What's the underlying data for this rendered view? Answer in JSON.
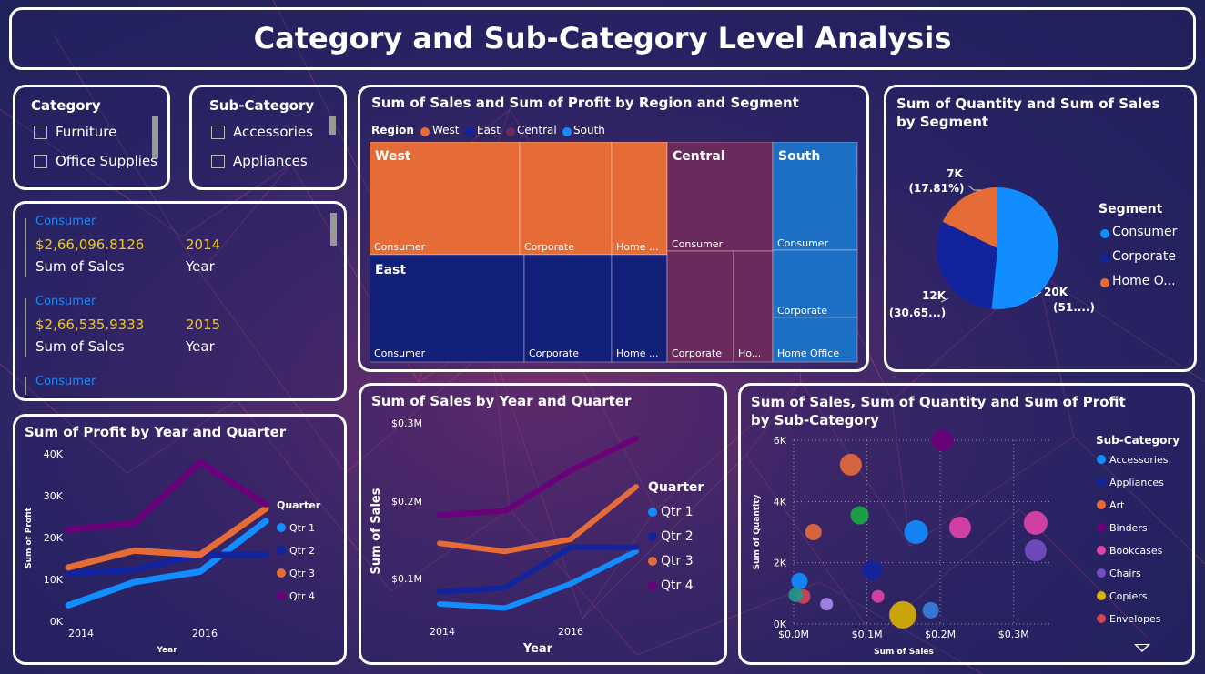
{
  "title": "Category and Sub-Category Level Analysis",
  "category_slicer": {
    "title": "Category",
    "items": [
      "Furniture",
      "Office Supplies"
    ]
  },
  "subcategory_slicer": {
    "title": "Sub-Category",
    "items": [
      "Accessories",
      "Appliances"
    ]
  },
  "sales_list": {
    "entries": [
      {
        "segment": "Consumer",
        "sales": "$2,66,096.8126",
        "sales_label": "Sum of Sales",
        "year": "2014",
        "year_label": "Year"
      },
      {
        "segment": "Consumer",
        "sales": "$2,66,535.9333",
        "sales_label": "Sum of Sales",
        "year": "2015",
        "year_label": "Year"
      },
      {
        "segment": "Consumer"
      }
    ]
  },
  "treemap": {
    "title": "Sum of Sales and Sum of Profit by Region and Segment",
    "legend_title": "Region",
    "legend": [
      {
        "name": "West",
        "color": "#e66c37"
      },
      {
        "name": "East",
        "color": "#12239e"
      },
      {
        "name": "Central",
        "color": "#6b007b"
      },
      {
        "name": "South",
        "color": "#118dff"
      }
    ],
    "regions": [
      "West",
      "East",
      "Central",
      "South"
    ],
    "cells": [
      "Consumer",
      "Corporate",
      "Home ...",
      "Consumer",
      "Corporate",
      "Home ...",
      "Consumer",
      "Corporate",
      "Ho...",
      "Consumer",
      "Corporate",
      "Home Office"
    ]
  },
  "pie": {
    "title": "Sum of Quantity and Sum of Sales by Segment",
    "legend_title": "Segment",
    "legend": [
      "Consumer",
      "Corporate",
      "Home O..."
    ],
    "labels": {
      "consumer": [
        "20K",
        "(51....)"
      ],
      "corporate": [
        "12K",
        "(30.65...)"
      ],
      "home": [
        "7K",
        "(17.81%)"
      ]
    },
    "colors": [
      "#118dff",
      "#12239e",
      "#e66c37"
    ],
    "chart_data": {
      "type": "pie",
      "categories": [
        "Consumer",
        "Corporate",
        "Home Office"
      ],
      "values": [
        51.54,
        30.65,
        17.81
      ]
    }
  },
  "profit_chart": {
    "title": "Sum of Profit by Year and Quarter",
    "xlabel": "Year",
    "ylabel": "Sum of Profit",
    "yticks": [
      "40K",
      "30K",
      "20K",
      "10K",
      "0K"
    ],
    "xticks": [
      "2014",
      "2016"
    ],
    "legend_title": "Quarter",
    "chart_data": {
      "type": "line",
      "x": [
        2014,
        2015,
        2016,
        2017
      ],
      "ylim": [
        0,
        40000
      ],
      "series": [
        {
          "name": "Qtr 1",
          "color": "#118dff",
          "values": [
            4000,
            9500,
            12000,
            24000
          ]
        },
        {
          "name": "Qtr 2",
          "color": "#12239e",
          "values": [
            11500,
            12500,
            16000,
            16000
          ]
        },
        {
          "name": "Qtr 3",
          "color": "#e66c37",
          "values": [
            13000,
            17000,
            16000,
            27000
          ]
        },
        {
          "name": "Qtr 4",
          "color": "#6b007b",
          "values": [
            22000,
            23500,
            38000,
            28000
          ]
        }
      ]
    }
  },
  "sales_chart": {
    "title": "Sum of Sales by Year and Quarter",
    "xlabel": "Year",
    "ylabel": "Sum of Sales",
    "yticks": [
      "$0.3M",
      "$0.2M",
      "$0.1M"
    ],
    "xticks": [
      "2014",
      "2016"
    ],
    "legend_title": "Quarter",
    "chart_data": {
      "type": "line",
      "x": [
        2014,
        2015,
        2016,
        2017
      ],
      "ylim": [
        0.03,
        0.3
      ],
      "series": [
        {
          "name": "Qtr 1",
          "color": "#118dff",
          "values": [
            0.075,
            0.07,
            0.1,
            0.14
          ]
        },
        {
          "name": "Qtr 2",
          "color": "#12239e",
          "values": [
            0.09,
            0.095,
            0.145,
            0.145
          ]
        },
        {
          "name": "Qtr 3",
          "color": "#e66c37",
          "values": [
            0.15,
            0.14,
            0.155,
            0.22
          ]
        },
        {
          "name": "Qtr 4",
          "color": "#6b007b",
          "values": [
            0.185,
            0.19,
            0.24,
            0.28
          ]
        }
      ]
    }
  },
  "scatter": {
    "title": "Sum of Sales, Sum of Quantity and Sum of Profit by Sub-Category",
    "xlabel": "Sum of Sales",
    "ylabel": "Sum of Quantity",
    "xticks": [
      "$0.0M",
      "$0.1M",
      "$0.2M",
      "$0.3M"
    ],
    "yticks": [
      "6K",
      "4K",
      "2K",
      "0K"
    ],
    "legend_title": "Sub-Category",
    "legend": [
      {
        "name": "Accessories",
        "color": "#118dff"
      },
      {
        "name": "Appliances",
        "color": "#12239e"
      },
      {
        "name": "Art",
        "color": "#e66c37"
      },
      {
        "name": "Binders",
        "color": "#6b007b"
      },
      {
        "name": "Bookcases",
        "color": "#e044a7"
      },
      {
        "name": "Chairs",
        "color": "#744ec2"
      },
      {
        "name": "Copiers",
        "color": "#d9b300"
      },
      {
        "name": "Envelopes",
        "color": "#d64550"
      }
    ],
    "chart_data": {
      "type": "scatter",
      "xlim": [
        0,
        0.35
      ],
      "ylim": [
        0,
        6000
      ],
      "points": [
        {
          "x": 0.167,
          "y": 3000,
          "size": 13,
          "color": "#118dff"
        },
        {
          "x": 0.008,
          "y": 1400,
          "size": 9,
          "color": "#118dff"
        },
        {
          "x": 0.107,
          "y": 1750,
          "size": 11,
          "color": "#12239e"
        },
        {
          "x": 0.078,
          "y": 5200,
          "size": 12,
          "color": "#e66c37"
        },
        {
          "x": 0.027,
          "y": 3000,
          "size": 9,
          "color": "#e66c37"
        },
        {
          "x": 0.203,
          "y": 6000,
          "size": 12,
          "color": "#6b007b"
        },
        {
          "x": 0.227,
          "y": 3150,
          "size": 12,
          "color": "#e044a7"
        },
        {
          "x": 0.33,
          "y": 3300,
          "size": 13,
          "color": "#e044a7"
        },
        {
          "x": 0.33,
          "y": 2400,
          "size": 12,
          "color": "#744ec2"
        },
        {
          "x": 0.045,
          "y": 650,
          "size": 7,
          "color": "#a98bf0"
        },
        {
          "x": 0.149,
          "y": 300,
          "size": 15,
          "color": "#d9b300"
        },
        {
          "x": 0.115,
          "y": 900,
          "size": 7,
          "color": "#e044a7"
        },
        {
          "x": 0.013,
          "y": 900,
          "size": 8,
          "color": "#d64550"
        },
        {
          "x": 0.003,
          "y": 950,
          "size": 8,
          "color": "#1c9a8a"
        },
        {
          "x": 0.09,
          "y": 3550,
          "size": 10,
          "color": "#1aab40"
        },
        {
          "x": 0.187,
          "y": 450,
          "size": 9,
          "color": "#3a7fe0"
        }
      ]
    }
  }
}
